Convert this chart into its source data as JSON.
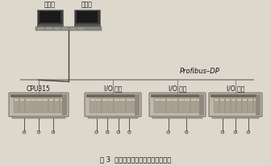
{
  "bg_color": "#ddd8cc",
  "title_text": "图 3  井下胶带监控系统的硬件结构图",
  "profibus_label": "Profibus–DP",
  "cpu_label": "CPU315",
  "io_labels": [
    "I/O 模块",
    "I/O 模块",
    "I/O 模块"
  ],
  "pc_labels": [
    "上位机",
    "上位机"
  ],
  "monitor_body": "#3a3a3a",
  "monitor_screen": "#1a1a1a",
  "monitor_base_color": "#888880",
  "desk_color": "#888880",
  "cable_color": "#444444",
  "bus_color": "#888888",
  "text_color": "#111111",
  "module_face": "#c0b8a8",
  "module_dark": "#706860",
  "module_rail": "#808878",
  "slot_color": "#a8a090",
  "slot_indicator": "#d0c8b8",
  "wire_color": "#555555"
}
